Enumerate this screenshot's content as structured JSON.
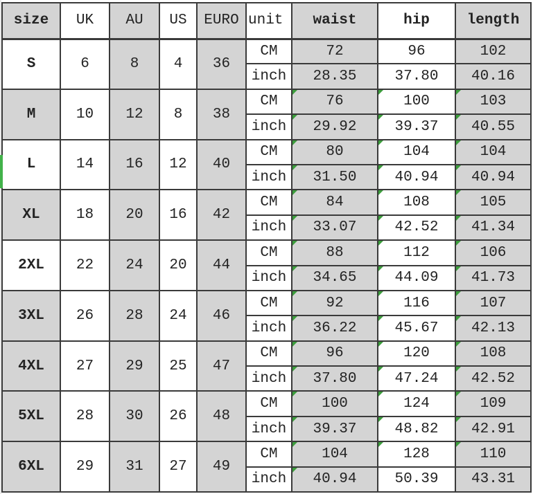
{
  "colors": {
    "cell_gray": "#d4d4d4",
    "grid_line": "#3a3a3a",
    "outer_line": "#1c1c1c",
    "green_marker": "#3c9e3c",
    "selection_green": "#42b24a",
    "text_color": "#232323",
    "margin_strip": "#eaeaea"
  },
  "chart_data": {
    "type": "table",
    "title": "Clothing size conversion chart with waist/hip/length measurements",
    "legend_note": "green corner triangles mark cells; gray/white column shading",
    "columns": [
      {
        "label": "size",
        "bold": true,
        "shade": "gray"
      },
      {
        "label": "UK",
        "bold": false,
        "shade": "white"
      },
      {
        "label": "AU",
        "bold": false,
        "shade": "gray"
      },
      {
        "label": "US",
        "bold": false,
        "shade": "white"
      },
      {
        "label": "EURO",
        "bold": false,
        "shade": "gray"
      },
      {
        "label": "unit",
        "bold": false,
        "shade": "white"
      },
      {
        "label": "waist",
        "bold": true,
        "shade": "gray"
      },
      {
        "label": "hip",
        "bold": true,
        "shade": "white"
      },
      {
        "label": "length",
        "bold": true,
        "shade": "gray"
      }
    ],
    "unit_labels": {
      "cm": "CM",
      "inch": "inch"
    },
    "measure_column_shades": [
      "gray",
      "white",
      "gray"
    ],
    "rows": [
      {
        "size": "S",
        "shade": "white",
        "uk": "6",
        "au": "8",
        "us": "4",
        "euro": "36",
        "cm": [
          {
            "v": "72",
            "g": false
          },
          {
            "v": "96",
            "g": false
          },
          {
            "v": "102",
            "g": false
          }
        ],
        "inch": [
          {
            "v": "28.35",
            "g": false
          },
          {
            "v": "37.80",
            "g": false
          },
          {
            "v": "40.16",
            "g": false
          }
        ]
      },
      {
        "size": "M",
        "shade": "gray",
        "uk": "10",
        "au": "12",
        "us": "8",
        "euro": "38",
        "cm": [
          {
            "v": "76",
            "g": true
          },
          {
            "v": "100",
            "g": true
          },
          {
            "v": "103",
            "g": true
          }
        ],
        "inch": [
          {
            "v": "29.92",
            "g": true
          },
          {
            "v": "39.37",
            "g": true
          },
          {
            "v": "40.55",
            "g": true
          }
        ]
      },
      {
        "size": "L",
        "shade": "white",
        "uk": "14",
        "au": "16",
        "us": "12",
        "euro": "40",
        "cm": [
          {
            "v": "80",
            "g": true
          },
          {
            "v": "104",
            "g": true
          },
          {
            "v": "104",
            "g": true
          }
        ],
        "inch": [
          {
            "v": "31.50",
            "g": true
          },
          {
            "v": "40.94",
            "g": true
          },
          {
            "v": "40.94",
            "g": true
          }
        ]
      },
      {
        "size": "XL",
        "shade": "gray",
        "uk": "18",
        "au": "20",
        "us": "16",
        "euro": "42",
        "cm": [
          {
            "v": "84",
            "g": true
          },
          {
            "v": "108",
            "g": true
          },
          {
            "v": "105",
            "g": true
          }
        ],
        "inch": [
          {
            "v": "33.07",
            "g": true
          },
          {
            "v": "42.52",
            "g": true
          },
          {
            "v": "41.34",
            "g": true
          }
        ]
      },
      {
        "size": "2XL",
        "shade": "white",
        "uk": "22",
        "au": "24",
        "us": "20",
        "euro": "44",
        "cm": [
          {
            "v": "88",
            "g": true
          },
          {
            "v": "112",
            "g": true
          },
          {
            "v": "106",
            "g": true
          }
        ],
        "inch": [
          {
            "v": "34.65",
            "g": true
          },
          {
            "v": "44.09",
            "g": true
          },
          {
            "v": "41.73",
            "g": true
          }
        ]
      },
      {
        "size": "3XL",
        "shade": "gray",
        "uk": "26",
        "au": "28",
        "us": "24",
        "euro": "46",
        "cm": [
          {
            "v": "92",
            "g": true
          },
          {
            "v": "116",
            "g": true
          },
          {
            "v": "107",
            "g": true
          }
        ],
        "inch": [
          {
            "v": "36.22",
            "g": true
          },
          {
            "v": "45.67",
            "g": true
          },
          {
            "v": "42.13",
            "g": true
          }
        ]
      },
      {
        "size": "4XL",
        "shade": "gray",
        "uk": "27",
        "au": "29",
        "us": "25",
        "euro": "47",
        "cm": [
          {
            "v": "96",
            "g": true
          },
          {
            "v": "120",
            "g": true
          },
          {
            "v": "108",
            "g": true
          }
        ],
        "inch": [
          {
            "v": "37.80",
            "g": true
          },
          {
            "v": "47.24",
            "g": true
          },
          {
            "v": "42.52",
            "g": true
          }
        ]
      },
      {
        "size": "5XL",
        "shade": "gray",
        "uk": "28",
        "au": "30",
        "us": "26",
        "euro": "48",
        "cm": [
          {
            "v": "100",
            "g": true
          },
          {
            "v": "124",
            "g": true
          },
          {
            "v": "109",
            "g": true
          }
        ],
        "inch": [
          {
            "v": "39.37",
            "g": true
          },
          {
            "v": "48.82",
            "g": true
          },
          {
            "v": "42.91",
            "g": true
          }
        ]
      },
      {
        "size": "6XL",
        "shade": "gray",
        "uk": "29",
        "au": "31",
        "us": "27",
        "euro": "49",
        "cm": [
          {
            "v": "104",
            "g": true
          },
          {
            "v": "128",
            "g": true
          },
          {
            "v": "110",
            "g": true
          }
        ],
        "inch": [
          {
            "v": "40.94",
            "g": true
          },
          {
            "v": "50.39",
            "g": false
          },
          {
            "v": "43.31",
            "g": false
          }
        ]
      }
    ]
  }
}
